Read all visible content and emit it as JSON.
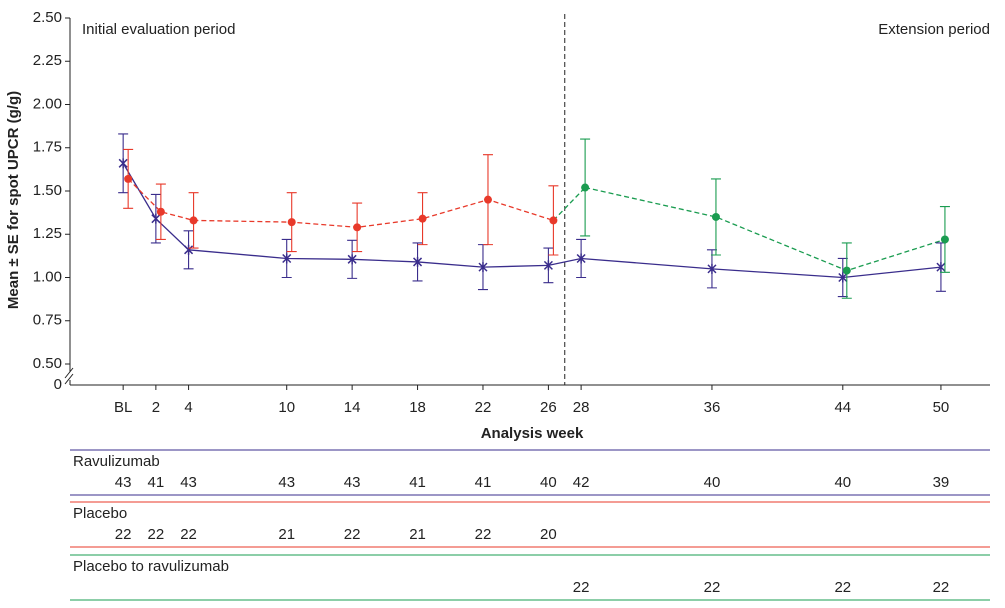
{
  "chart_data": {
    "type": "line",
    "y_label": "Mean ± SE for spot UPCR (g/g)",
    "x_label": "Analysis week",
    "left_period_label": "Initial evaluation period",
    "right_period_label": "Extension period",
    "period_divider": 27,
    "axis_break_label": "0",
    "xlim": [
      -3.25,
      53
    ],
    "ylim": [
      0.5,
      2.5
    ],
    "yticks": [
      {
        "value": 0.5,
        "label": "0.50"
      },
      {
        "value": 0.75,
        "label": "0.75"
      },
      {
        "value": 1.0,
        "label": "1.00"
      },
      {
        "value": 1.25,
        "label": "1.25"
      },
      {
        "value": 1.5,
        "label": "1.50"
      },
      {
        "value": 1.75,
        "label": "1.75"
      },
      {
        "value": 2.0,
        "label": "2.00"
      },
      {
        "value": 2.25,
        "label": "2.25"
      },
      {
        "value": 2.5,
        "label": "2.50"
      }
    ],
    "xticks": [
      {
        "value": 0,
        "label": "BL"
      },
      2,
      4,
      10,
      14,
      18,
      22,
      26,
      28,
      36,
      44,
      50
    ],
    "series": [
      {
        "name": "Ravulizumab",
        "color": "#3a2d8c",
        "marker": "star",
        "dashed": false,
        "x": [
          0,
          2,
          4,
          10,
          14,
          18,
          22,
          26,
          28,
          36,
          44,
          50
        ],
        "values": [
          1.66,
          1.34,
          1.16,
          1.11,
          1.105,
          1.09,
          1.06,
          1.07,
          1.11,
          1.05,
          1.0,
          1.06
        ],
        "errors": [
          0.17,
          0.14,
          0.11,
          0.11,
          0.11,
          0.11,
          0.13,
          0.1,
          0.11,
          0.11,
          0.11,
          0.14
        ]
      },
      {
        "name": "Placebo",
        "color": "#e8392a",
        "marker": "circle",
        "dashed": true,
        "x": [
          0,
          2,
          4,
          10,
          14,
          18,
          22,
          26
        ],
        "values": [
          1.57,
          1.38,
          1.33,
          1.32,
          1.29,
          1.34,
          1.45,
          1.33
        ],
        "errors": [
          0.17,
          0.16,
          0.16,
          0.17,
          0.14,
          0.15,
          0.26,
          0.2
        ]
      },
      {
        "name": "Placebo to ravulizumab",
        "color": "#1a9c50",
        "marker": "circle",
        "dashed": true,
        "x": [
          28,
          36,
          44,
          50
        ],
        "values": [
          1.52,
          1.35,
          1.04,
          1.22
        ],
        "errors": [
          0.28,
          0.22,
          0.16,
          0.19
        ]
      }
    ],
    "at_risk": [
      {
        "x": [
          0,
          2,
          4,
          10,
          14,
          18,
          22,
          26,
          28,
          36,
          44,
          50
        ],
        "counts": [
          43,
          41,
          43,
          43,
          43,
          41,
          41,
          40,
          42,
          40,
          40,
          39
        ]
      },
      {
        "x": [
          0,
          2,
          4,
          10,
          14,
          18,
          22,
          26
        ],
        "counts": [
          22,
          22,
          22,
          21,
          22,
          21,
          22,
          20
        ]
      },
      {
        "x": [
          28,
          36,
          44,
          50
        ],
        "counts": [
          22,
          22,
          22,
          22
        ]
      }
    ]
  }
}
